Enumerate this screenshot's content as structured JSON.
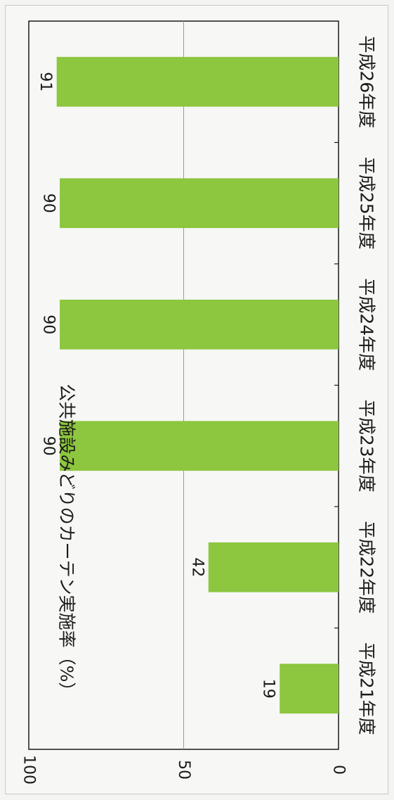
{
  "chart_data": {
    "type": "bar",
    "orientation": "vertical (figure printed rotated 90° clockwise)",
    "title": "公共施設みどりのカーテン実施率（%）",
    "categories": [
      "平成21年度",
      "平成22年度",
      "平成23年度",
      "平成24年度",
      "平成25年度",
      "平成26年度"
    ],
    "values": [
      19,
      42,
      90,
      90,
      90,
      91
    ],
    "value_labels": [
      "19",
      "42",
      "90",
      "90",
      "90",
      "91"
    ],
    "y_ticks": [
      "0",
      "50",
      "100"
    ],
    "ylim": [
      0,
      100
    ],
    "grid": true,
    "bar_color": "#8dc63f",
    "grid_color": "#9a9a9a",
    "axis_color": "#1a1a1a"
  }
}
